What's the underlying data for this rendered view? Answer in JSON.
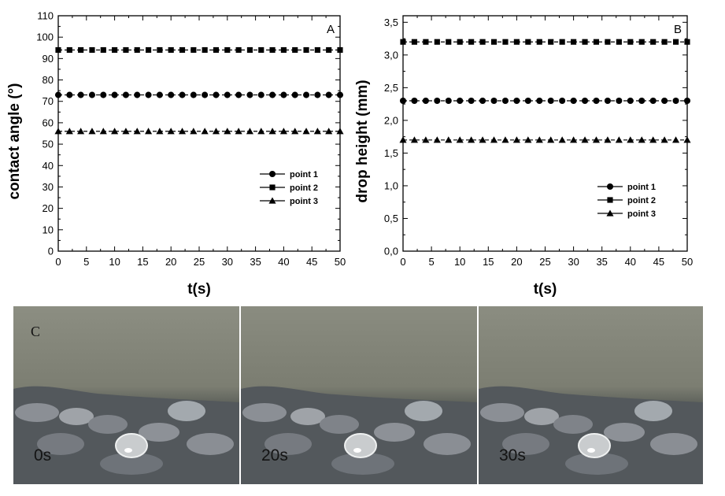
{
  "chart_data": [
    {
      "type": "line",
      "panel_label": "A",
      "xlabel": "t(s)",
      "ylabel": "contact angle (°)",
      "x_ticks": [
        "0",
        "5",
        "10",
        "15",
        "20",
        "25",
        "30",
        "35",
        "40",
        "45",
        "50"
      ],
      "y_ticks": [
        "0",
        "10",
        "20",
        "30",
        "40",
        "50",
        "60",
        "70",
        "80",
        "90",
        "100",
        "110"
      ],
      "xlim": [
        0,
        50
      ],
      "ylim": [
        0,
        110
      ],
      "x": [
        0,
        2,
        4,
        6,
        8,
        10,
        12,
        14,
        16,
        18,
        20,
        22,
        24,
        26,
        28,
        30,
        32,
        34,
        36,
        38,
        40,
        42,
        44,
        46,
        48,
        50
      ],
      "grid": false,
      "legend_position": "lower-right",
      "series": [
        {
          "name": "point 1",
          "marker": "circle",
          "y": 73
        },
        {
          "name": "point 2",
          "marker": "square",
          "y": 94
        },
        {
          "name": "point 3",
          "marker": "triangle",
          "y": 56
        }
      ]
    },
    {
      "type": "line",
      "panel_label": "B",
      "xlabel": "t(s)",
      "ylabel": "drop height (mm)",
      "x_ticks": [
        "0",
        "5",
        "10",
        "15",
        "20",
        "25",
        "30",
        "35",
        "40",
        "45",
        "50"
      ],
      "y_ticks": [
        "0,0",
        "0,5",
        "1,0",
        "1,5",
        "2,0",
        "2,5",
        "3,0",
        "3,5"
      ],
      "xlim": [
        0,
        50
      ],
      "ylim": [
        0,
        3.6
      ],
      "x": [
        0,
        2,
        4,
        6,
        8,
        10,
        12,
        14,
        16,
        18,
        20,
        22,
        24,
        26,
        28,
        30,
        32,
        34,
        36,
        38,
        40,
        42,
        44,
        46,
        48,
        50
      ],
      "grid": false,
      "legend_position": "lower-right",
      "series": [
        {
          "name": "point 1",
          "marker": "circle",
          "y": 2.3
        },
        {
          "name": "point 2",
          "marker": "square",
          "y": 3.2
        },
        {
          "name": "point 3",
          "marker": "triangle",
          "y": 1.7
        }
      ]
    }
  ],
  "photos": {
    "panel_label": "C",
    "frames": [
      {
        "time": "0s"
      },
      {
        "time": "20s"
      },
      {
        "time": "30s"
      }
    ]
  }
}
